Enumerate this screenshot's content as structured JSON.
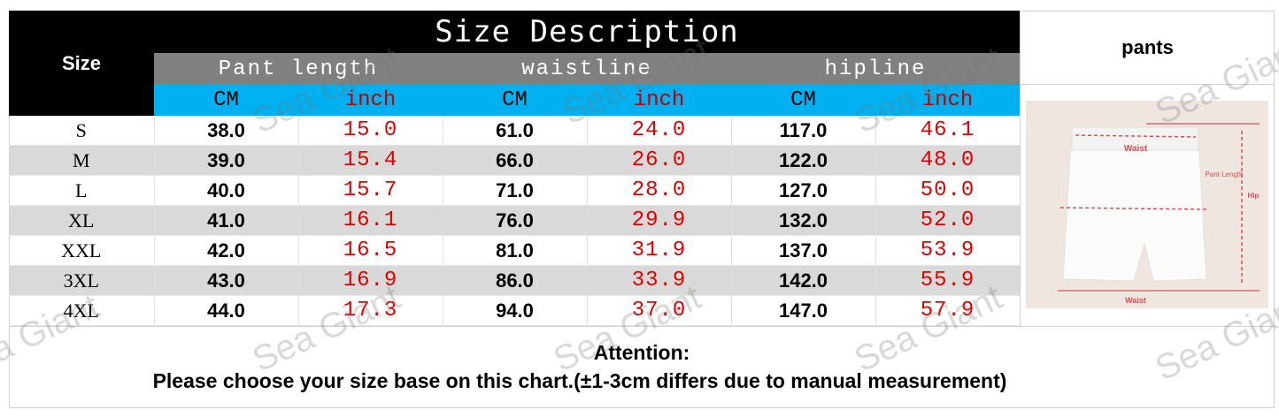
{
  "table": {
    "title": "Size Description",
    "size_header": "Size",
    "groups": [
      "Pant length",
      "waistline",
      "hipline"
    ],
    "units": [
      "CM",
      "inch",
      "CM",
      "inch",
      "CM",
      "inch"
    ],
    "rows": [
      {
        "size": "S",
        "values": [
          "38.0",
          "15.0",
          "61.0",
          "24.0",
          "117.0",
          "46.1"
        ]
      },
      {
        "size": "M",
        "values": [
          "39.0",
          "15.4",
          "66.0",
          "26.0",
          "122.0",
          "48.0"
        ]
      },
      {
        "size": "L",
        "values": [
          "40.0",
          "15.7",
          "71.0",
          "28.0",
          "127.0",
          "50.0"
        ]
      },
      {
        "size": "XL",
        "values": [
          "41.0",
          "16.1",
          "76.0",
          "29.9",
          "132.0",
          "52.0"
        ]
      },
      {
        "size": "XXL",
        "values": [
          "42.0",
          "16.5",
          "81.0",
          "31.9",
          "137.0",
          "53.9"
        ]
      },
      {
        "size": "3XL",
        "values": [
          "43.0",
          "16.9",
          "86.0",
          "33.9",
          "142.0",
          "55.9"
        ]
      },
      {
        "size": "4XL",
        "values": [
          "44.0",
          "17.3",
          "94.0",
          "37.0",
          "147.0",
          "57.9"
        ]
      }
    ]
  },
  "side": {
    "label": "pants",
    "diagram_labels": {
      "waist_top": "Waist",
      "pant_length": "Pant Length",
      "hip": "Hip",
      "waist_bottom": "Waist"
    }
  },
  "attention": {
    "title": "Attention:",
    "text": "Please choose your size base on this chart.(±1-3cm differs due to manual measurement)"
  },
  "watermark": "Sea Giant",
  "colors": {
    "header_black": "#000000",
    "group_gray": "#808080",
    "unit_cyan": "#00b0f0",
    "inch_red": "#e00000",
    "alt_row": "#d9d9d9"
  }
}
